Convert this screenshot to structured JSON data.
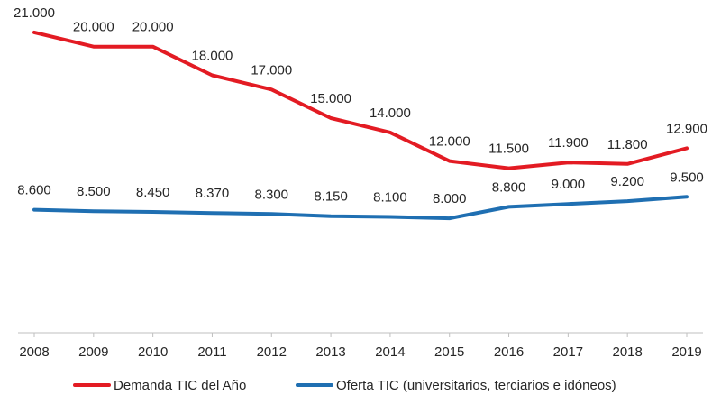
{
  "chart_data": {
    "type": "line",
    "title": "",
    "xlabel": "",
    "ylabel": "",
    "x": [
      "2008",
      "2009",
      "2010",
      "2011",
      "2012",
      "2013",
      "2014",
      "2015",
      "2016",
      "2017",
      "2018",
      "2019"
    ],
    "ylim": [
      0,
      22000
    ],
    "grid": false,
    "legend_position": "bottom",
    "series": [
      {
        "name": "Demanda TIC del Año",
        "color": "#e31b23",
        "values": [
          21000,
          20000,
          20000,
          18000,
          17000,
          15000,
          14000,
          12000,
          11500,
          11900,
          11800,
          12900
        ],
        "labels": [
          "21.000",
          "20.000",
          "20.000",
          "18.000",
          "17.000",
          "15.000",
          "14.000",
          "12.000",
          "11.500",
          "11.900",
          "11.800",
          "12.900"
        ]
      },
      {
        "name": "Oferta TIC (universitarios, terciarios e idóneos)",
        "color": "#1f6fb2",
        "values": [
          8600,
          8500,
          8450,
          8370,
          8300,
          8150,
          8100,
          8000,
          8800,
          9000,
          9200,
          9500
        ],
        "labels": [
          "8.600",
          "8.500",
          "8.450",
          "8.370",
          "8.300",
          "8.150",
          "8.100",
          "8.000",
          "8.800",
          "9.000",
          "9.200",
          "9.500"
        ]
      }
    ]
  }
}
